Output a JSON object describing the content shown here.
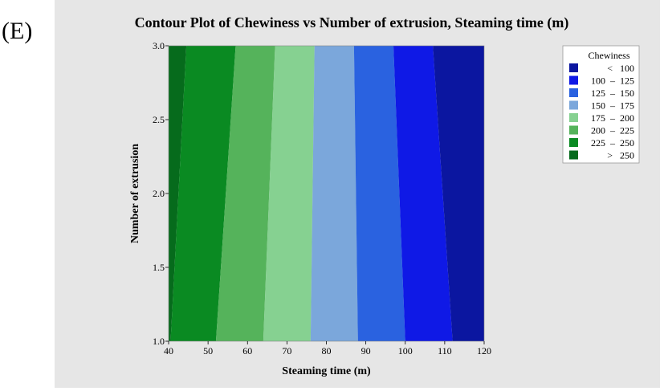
{
  "panel_label": "(E)",
  "colors": {
    "frame_bg": "#e6e6e6",
    "lt100": "#0b16a0",
    "b100_125": "#0f19e6",
    "b125_150": "#2a62e0",
    "b150_175": "#7ba7db",
    "b175_200": "#86d191",
    "b200_225": "#55b35b",
    "b225_250": "#0a8a22",
    "gt250": "#066b1c"
  },
  "chart_data": {
    "type": "contour",
    "title": "Contour Plot of Chewiness vs Number of extrusion, Steaming time (m)",
    "xlabel": "Steaming time (m)",
    "ylabel": "Number of extrusion",
    "xlim": [
      40,
      120
    ],
    "ylim": [
      1.0,
      3.0
    ],
    "x_ticks": [
      "40",
      "50",
      "60",
      "70",
      "80",
      "90",
      "100",
      "110",
      "120"
    ],
    "y_ticks": [
      "1.0",
      "1.5",
      "2.0",
      "2.5",
      "3.0"
    ],
    "x_tick_values": [
      40,
      50,
      60,
      70,
      80,
      90,
      100,
      110,
      120
    ],
    "y_tick_values": [
      1.0,
      1.5,
      2.0,
      2.5,
      3.0
    ],
    "contour_levels": [
      {
        "level": 250,
        "x_at_y1": 40.5,
        "x_at_y3": 44.5
      },
      {
        "level": 225,
        "x_at_y1": 52.0,
        "x_at_y3": 57.0
      },
      {
        "level": 200,
        "x_at_y1": 64.0,
        "x_at_y3": 67.0
      },
      {
        "level": 175,
        "x_at_y1": 76.0,
        "x_at_y3": 77.0
      },
      {
        "level": 150,
        "x_at_y1": 88.0,
        "x_at_y3": 87.0
      },
      {
        "level": 125,
        "x_at_y1": 100.0,
        "x_at_y3": 97.0
      },
      {
        "level": 100,
        "x_at_y1": 112.0,
        "x_at_y3": 107.0
      }
    ],
    "legend": {
      "title": "Chewiness",
      "placement": "top-right",
      "items": [
        {
          "label": "<   100",
          "color_key": "lt100"
        },
        {
          "label": "100  –  125",
          "color_key": "b100_125"
        },
        {
          "label": "125  –  150",
          "color_key": "b125_150"
        },
        {
          "label": "150  –  175",
          "color_key": "b150_175"
        },
        {
          "label": "175  –  200",
          "color_key": "b175_200"
        },
        {
          "label": "200  –  225",
          "color_key": "b200_225"
        },
        {
          "label": "225  –  250",
          "color_key": "b225_250"
        },
        {
          "label": ">   250",
          "color_key": "gt250"
        }
      ]
    }
  }
}
